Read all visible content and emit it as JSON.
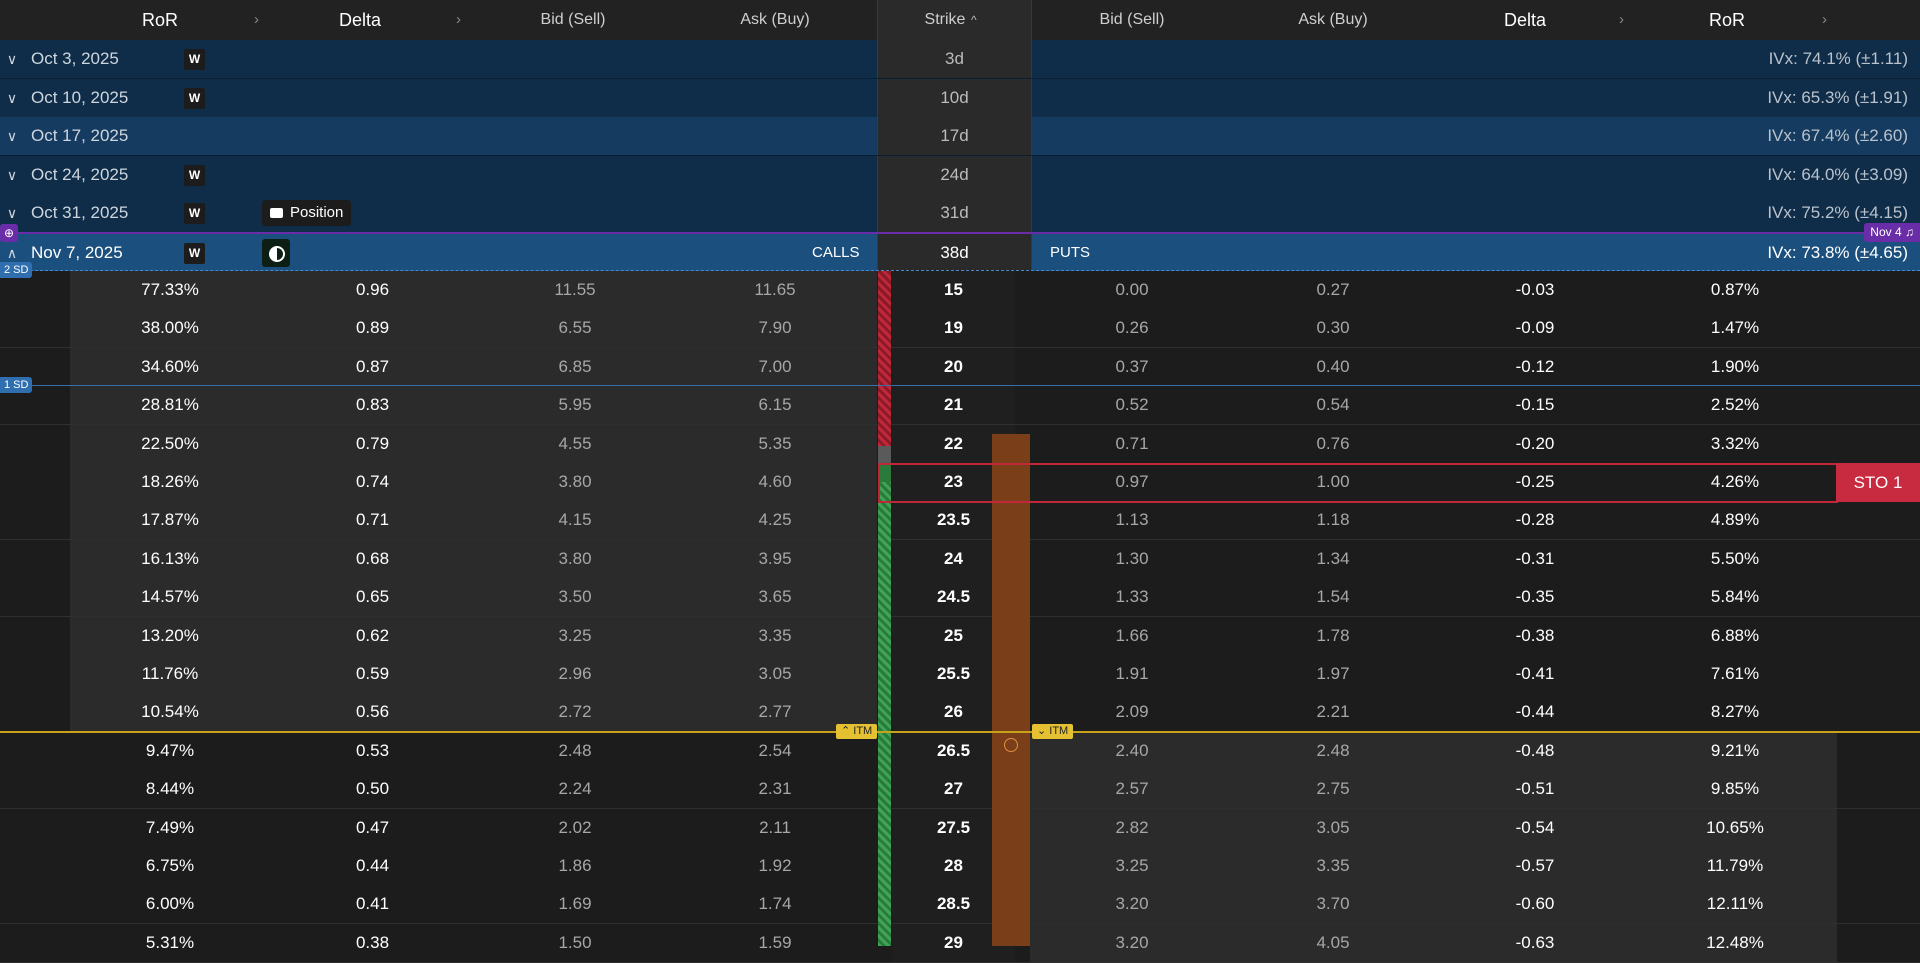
{
  "header": {
    "ror_left": "RoR",
    "delta_left": "Delta",
    "bid_left": "Bid (Sell)",
    "ask_left": "Ask (Buy)",
    "strike": "Strike",
    "bid_right": "Bid (Sell)",
    "ask_right": "Ask (Buy)",
    "delta_right": "Delta",
    "ror_right": "RoR",
    "caret": "›",
    "sort_icon": "^"
  },
  "expirations": [
    {
      "date": "Oct 3, 2025",
      "days": "3d",
      "ivx": "IVx: 74.1% (±1.11)",
      "weekly": "W"
    },
    {
      "date": "Oct 10, 2025",
      "days": "10d",
      "ivx": "IVx: 65.3% (±1.91)",
      "weekly": "W"
    },
    {
      "date": "Oct 17, 2025",
      "days": "17d",
      "ivx": "IVx: 67.4% (±2.60)",
      "weekly": ""
    },
    {
      "date": "Oct 24, 2025",
      "days": "24d",
      "ivx": "IVx: 64.0% (±3.09)",
      "weekly": "W"
    },
    {
      "date": "Oct 31, 2025",
      "days": "31d",
      "ivx": "IVx: 75.2% (±4.15)",
      "weekly": "W",
      "position": "Position"
    },
    {
      "date": "Nov 7, 2025",
      "days": "38d",
      "ivx": "IVx: 73.8% (±4.65)",
      "weekly": "W",
      "calls": "CALLS",
      "puts": "PUTS",
      "alert": "Nov 4"
    }
  ],
  "markers": {
    "sd2": "2 SD",
    "sd1": "1 SD",
    "itm": "ITM",
    "sto": "STO 1"
  },
  "rows": [
    {
      "c_ror": "77.33%",
      "c_delta": "0.96",
      "c_bid": "11.55",
      "c_ask": "11.65",
      "strike": "15",
      "p_bid": "0.00",
      "p_ask": "0.27",
      "p_delta": "-0.03",
      "p_ror": "0.87%"
    },
    {
      "c_ror": "38.00%",
      "c_delta": "0.89",
      "c_bid": "6.55",
      "c_ask": "7.90",
      "strike": "19",
      "p_bid": "0.26",
      "p_ask": "0.30",
      "p_delta": "-0.09",
      "p_ror": "1.47%"
    },
    {
      "c_ror": "34.60%",
      "c_delta": "0.87",
      "c_bid": "6.85",
      "c_ask": "7.00",
      "strike": "20",
      "p_bid": "0.37",
      "p_ask": "0.40",
      "p_delta": "-0.12",
      "p_ror": "1.90%"
    },
    {
      "c_ror": "28.81%",
      "c_delta": "0.83",
      "c_bid": "5.95",
      "c_ask": "6.15",
      "strike": "21",
      "p_bid": "0.52",
      "p_ask": "0.54",
      "p_delta": "-0.15",
      "p_ror": "2.52%"
    },
    {
      "c_ror": "22.50%",
      "c_delta": "0.79",
      "c_bid": "4.55",
      "c_ask": "5.35",
      "strike": "22",
      "p_bid": "0.71",
      "p_ask": "0.76",
      "p_delta": "-0.20",
      "p_ror": "3.32%"
    },
    {
      "c_ror": "18.26%",
      "c_delta": "0.74",
      "c_bid": "3.80",
      "c_ask": "4.60",
      "strike": "23",
      "p_bid": "0.97",
      "p_ask": "1.00",
      "p_delta": "-0.25",
      "p_ror": "4.26%"
    },
    {
      "c_ror": "17.87%",
      "c_delta": "0.71",
      "c_bid": "4.15",
      "c_ask": "4.25",
      "strike": "23.5",
      "p_bid": "1.13",
      "p_ask": "1.18",
      "p_delta": "-0.28",
      "p_ror": "4.89%"
    },
    {
      "c_ror": "16.13%",
      "c_delta": "0.68",
      "c_bid": "3.80",
      "c_ask": "3.95",
      "strike": "24",
      "p_bid": "1.30",
      "p_ask": "1.34",
      "p_delta": "-0.31",
      "p_ror": "5.50%"
    },
    {
      "c_ror": "14.57%",
      "c_delta": "0.65",
      "c_bid": "3.50",
      "c_ask": "3.65",
      "strike": "24.5",
      "p_bid": "1.33",
      "p_ask": "1.54",
      "p_delta": "-0.35",
      "p_ror": "5.84%"
    },
    {
      "c_ror": "13.20%",
      "c_delta": "0.62",
      "c_bid": "3.25",
      "c_ask": "3.35",
      "strike": "25",
      "p_bid": "1.66",
      "p_ask": "1.78",
      "p_delta": "-0.38",
      "p_ror": "6.88%"
    },
    {
      "c_ror": "11.76%",
      "c_delta": "0.59",
      "c_bid": "2.96",
      "c_ask": "3.05",
      "strike": "25.5",
      "p_bid": "1.91",
      "p_ask": "1.97",
      "p_delta": "-0.41",
      "p_ror": "7.61%"
    },
    {
      "c_ror": "10.54%",
      "c_delta": "0.56",
      "c_bid": "2.72",
      "c_ask": "2.77",
      "strike": "26",
      "p_bid": "2.09",
      "p_ask": "2.21",
      "p_delta": "-0.44",
      "p_ror": "8.27%"
    },
    {
      "c_ror": "9.47%",
      "c_delta": "0.53",
      "c_bid": "2.48",
      "c_ask": "2.54",
      "strike": "26.5",
      "p_bid": "2.40",
      "p_ask": "2.48",
      "p_delta": "-0.48",
      "p_ror": "9.21%"
    },
    {
      "c_ror": "8.44%",
      "c_delta": "0.50",
      "c_bid": "2.24",
      "c_ask": "2.31",
      "strike": "27",
      "p_bid": "2.57",
      "p_ask": "2.75",
      "p_delta": "-0.51",
      "p_ror": "9.85%"
    },
    {
      "c_ror": "7.49%",
      "c_delta": "0.47",
      "c_bid": "2.02",
      "c_ask": "2.11",
      "strike": "27.5",
      "p_bid": "2.82",
      "p_ask": "3.05",
      "p_delta": "-0.54",
      "p_ror": "10.65%"
    },
    {
      "c_ror": "6.75%",
      "c_delta": "0.44",
      "c_bid": "1.86",
      "c_ask": "1.92",
      "strike": "28",
      "p_bid": "3.25",
      "p_ask": "3.35",
      "p_delta": "-0.57",
      "p_ror": "11.79%"
    },
    {
      "c_ror": "6.00%",
      "c_delta": "0.41",
      "c_bid": "1.69",
      "c_ask": "1.74",
      "strike": "28.5",
      "p_bid": "3.20",
      "p_ask": "3.70",
      "p_delta": "-0.60",
      "p_ror": "12.11%"
    },
    {
      "c_ror": "5.31%",
      "c_delta": "0.38",
      "c_bid": "1.50",
      "c_ask": "1.59",
      "strike": "29",
      "p_bid": "3.20",
      "p_ask": "4.05",
      "p_delta": "-0.63",
      "p_ror": "12.48%"
    }
  ]
}
